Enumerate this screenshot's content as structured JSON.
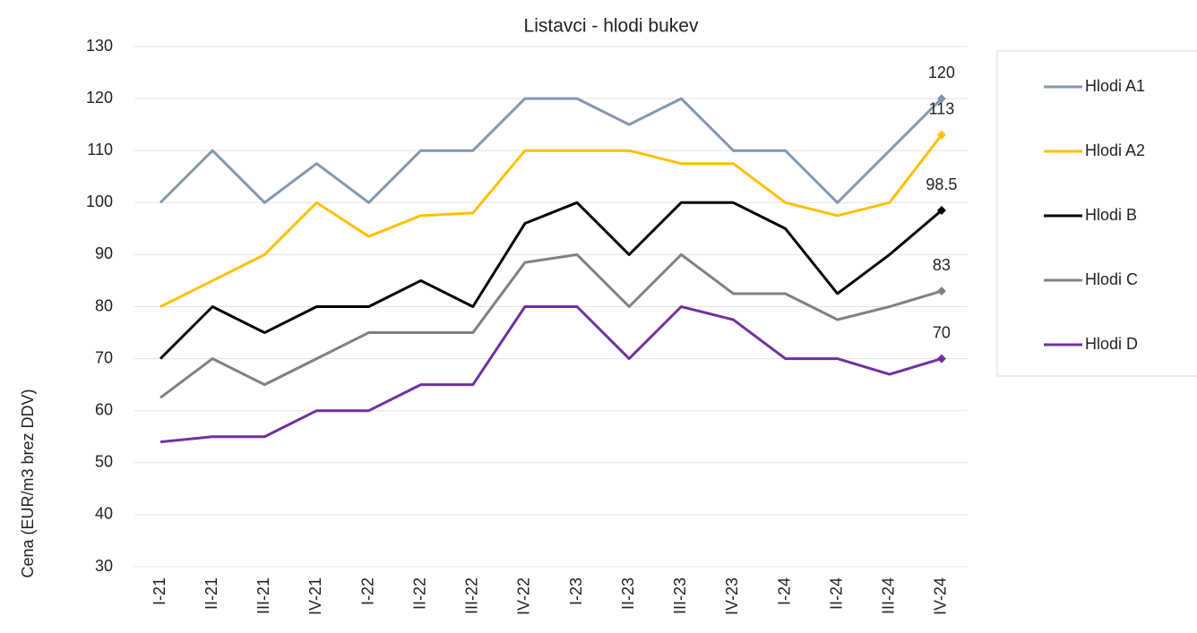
{
  "chart_data": {
    "type": "line",
    "title": "Listavci - hlodi bukev",
    "y_label": "Cena (EUR/m3 brez DDV)",
    "categories": [
      "I-21",
      "II-21",
      "III-21",
      "IV-21",
      "I-22",
      "II-22",
      "III-22",
      "IV-22",
      "I-23",
      "II-23",
      "III-23",
      "IV-23",
      "I-24",
      "II-24",
      "III-24",
      "IV-24"
    ],
    "series": [
      {
        "name": "Hlodi A1",
        "color": "#8497b0",
        "values": [
          100,
          110,
          100,
          107.5,
          100,
          110,
          110,
          120,
          120,
          115,
          120,
          110,
          110,
          100,
          110,
          120
        ]
      },
      {
        "name": "Hlodi A2",
        "color": "#ffc000",
        "values": [
          80,
          85,
          90,
          100,
          93.5,
          97.5,
          98,
          110,
          110,
          110,
          107.5,
          107.5,
          100,
          97.5,
          100,
          113
        ]
      },
      {
        "name": "Hlodi B",
        "color": "#000000",
        "values": [
          70,
          80,
          75,
          80,
          80,
          85,
          80,
          96,
          100,
          90,
          100,
          100,
          95,
          82.5,
          90,
          98.5
        ]
      },
      {
        "name": "Hlodi C",
        "color": "#808080",
        "values": [
          62.5,
          70,
          65,
          70,
          75,
          75,
          75,
          88.5,
          90,
          80,
          90,
          82.5,
          82.5,
          77.5,
          80,
          83
        ]
      },
      {
        "name": "Hlodi D",
        "color": "#7030a0",
        "values": [
          54,
          55,
          55,
          60,
          60,
          65,
          65,
          80,
          80,
          70,
          80,
          77.5,
          70,
          70,
          67,
          70
        ]
      }
    ],
    "ylim": [
      30,
      130
    ],
    "yticks": [
      30,
      40,
      50,
      60,
      70,
      80,
      90,
      100,
      110,
      120,
      130
    ],
    "grid": true,
    "legend": "right"
  }
}
